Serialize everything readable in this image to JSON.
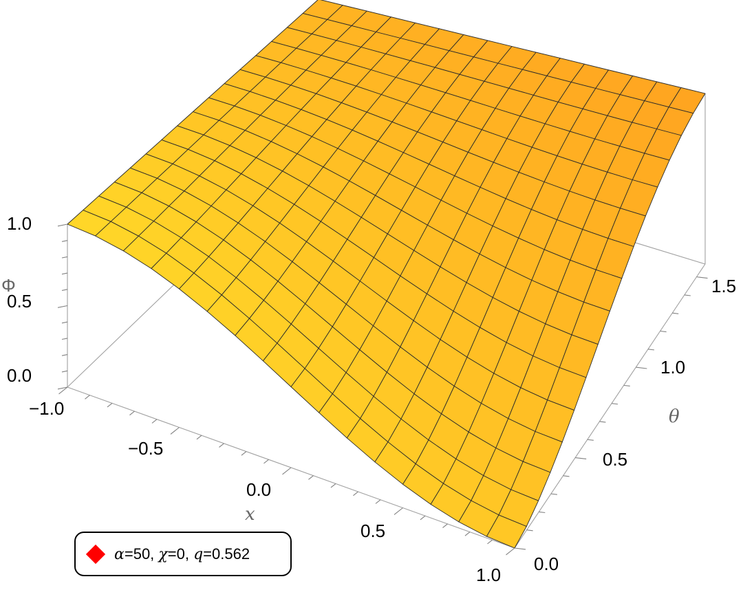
{
  "chart_data": {
    "type": "surface",
    "function_symbol": "Φ",
    "axes": {
      "x": {
        "label": "x",
        "range": [
          -1.0,
          1.0
        ],
        "ticks": [
          "-1.0",
          "-0.5",
          "0.0",
          "0.5",
          "1.0"
        ]
      },
      "theta": {
        "label": "θ",
        "range": [
          0.0,
          1.5708
        ],
        "ticks": [
          "0.0",
          "0.5",
          "1.0",
          "1.5"
        ]
      },
      "phi": {
        "label": "Φ",
        "range": [
          0.0,
          1.0
        ],
        "ticks": [
          "0.0",
          "0.5",
          "1.0"
        ]
      }
    },
    "grid": {
      "x_lines": 16,
      "theta_lines": 16
    },
    "surface_colors": {
      "light": "#ffd21f",
      "dark": "#f49a1c",
      "mesh": "#2a2a2a"
    },
    "legend": {
      "placement": "bottom-left",
      "marker_color": "#ff0000",
      "entries": [
        {
          "label": "α=50, χ=0, q=0.562",
          "alpha": "50",
          "chi": "0",
          "q": "0.562"
        }
      ]
    },
    "sample_values": {
      "theta_0": [
        [
          -1.0,
          1.0
        ],
        [
          -0.5,
          0.85
        ],
        [
          0.0,
          0.5
        ],
        [
          0.5,
          0.15
        ],
        [
          1.0,
          0.0
        ]
      ],
      "theta_pi_over_2": [
        [
          -1.0,
          1.0
        ],
        [
          0.0,
          1.0
        ],
        [
          1.0,
          1.0
        ]
      ]
    }
  },
  "legend_parts": {
    "alpha_sym": "α",
    "alpha_val": "=50, ",
    "chi_sym": "χ",
    "chi_val": "=0, ",
    "q_sym": "q",
    "q_val": "=0.562"
  }
}
